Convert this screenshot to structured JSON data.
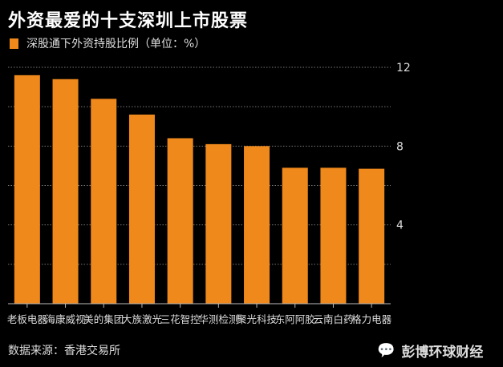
{
  "chart_data": {
    "type": "bar",
    "title": "外资最爱的十支深圳上市股票",
    "legend": "深股通下外资持股比例（单位：%）",
    "categories": [
      "老板电器",
      "海康威视",
      "美的集团",
      "大族激光",
      "三花智控",
      "华测检测",
      "聚光科技",
      "东阿阿胶",
      "云南白药",
      "格力电器"
    ],
    "series": [
      {
        "name": "深股通下外资持股比例（单位：%）",
        "values": [
          11.6,
          11.4,
          10.4,
          9.6,
          8.4,
          8.1,
          8.0,
          6.9,
          6.9,
          6.85
        ]
      }
    ],
    "ylim": [
      0,
      12
    ],
    "yticks": [
      4,
      8,
      12
    ],
    "grid": true,
    "gridlines": [
      2,
      4,
      6,
      8,
      10,
      12
    ],
    "y_axis_side": "right",
    "legend_placement": "top-left",
    "bar_color": "#f0891c"
  },
  "footer": {
    "source": "数据来源：香港交易所",
    "watermark": "彭博环球财经"
  }
}
